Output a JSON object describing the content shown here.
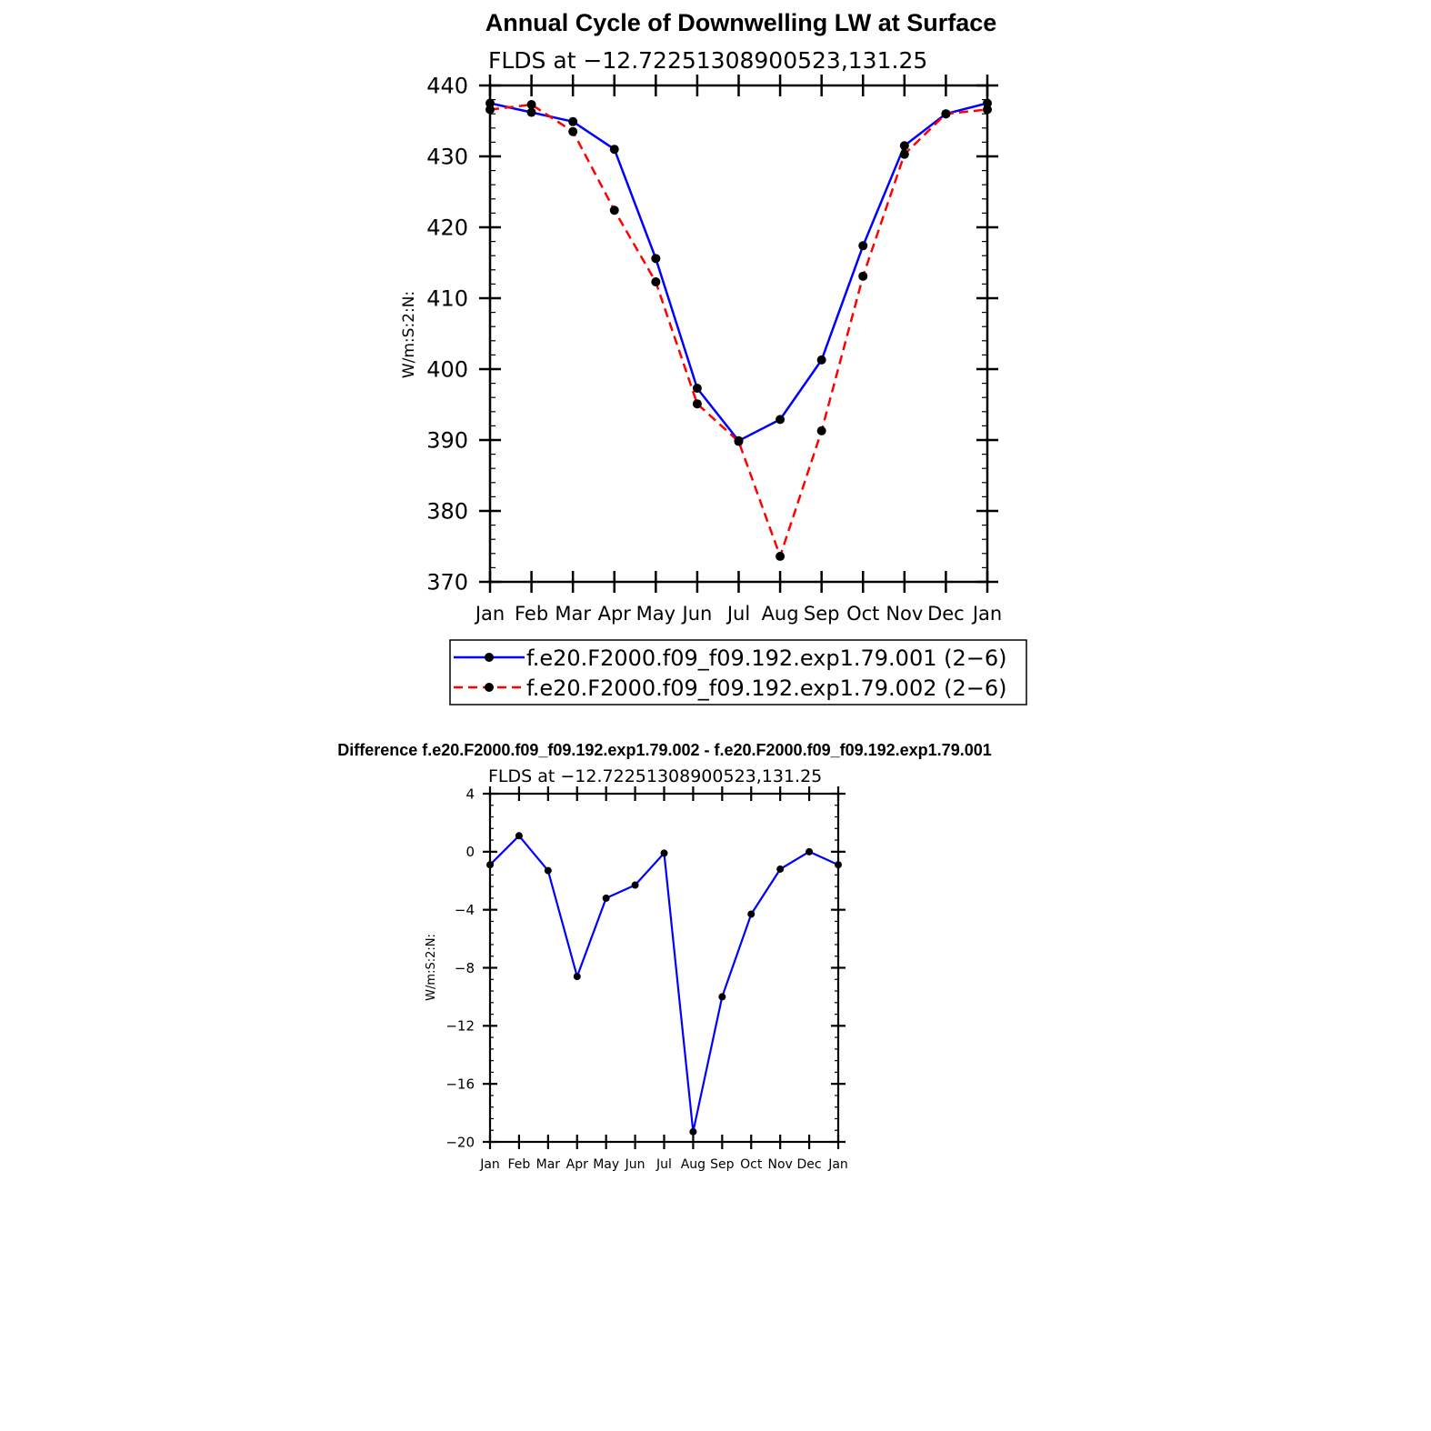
{
  "chart_data": [
    {
      "type": "line",
      "title": "Annual Cycle of Downwelling LW at Surface",
      "subtitle": "FLDS at −12.72251308900523,131.25",
      "ylabel": "W/m:S:2:N:",
      "xlabel": "",
      "categories": [
        "Jan",
        "Feb",
        "Mar",
        "Apr",
        "May",
        "Jun",
        "Jul",
        "Aug",
        "Sep",
        "Oct",
        "Nov",
        "Dec",
        "Jan"
      ],
      "ylim": [
        370,
        440
      ],
      "yticks": [
        370,
        380,
        390,
        400,
        410,
        420,
        430,
        440
      ],
      "ytick_labels": [
        "370",
        "380",
        "390",
        "400",
        "410",
        "420",
        "430",
        "440"
      ],
      "legend_position": "bottom",
      "series": [
        {
          "name": "f.e20.F2000.f09_f09.192.exp1.79.001 (2−6)",
          "color": "#0000ff",
          "dash": "solid",
          "values": [
            437.5,
            436.2,
            434.9,
            431.0,
            415.6,
            397.3,
            389.9,
            392.9,
            401.3,
            417.4,
            431.5,
            436.0,
            437.5
          ]
        },
        {
          "name": "f.e20.F2000.f09_f09.192.exp1.79.002 (2−6)",
          "color": "#ff0000",
          "dash": "dashed",
          "values": [
            436.6,
            437.3,
            433.5,
            422.4,
            412.3,
            395.1,
            389.8,
            373.6,
            391.3,
            413.1,
            430.3,
            436.0,
            436.6
          ]
        }
      ]
    },
    {
      "type": "line",
      "title": "Difference f.e20.F2000.f09_f09.192.exp1.79.002 - f.e20.F2000.f09_f09.192.exp1.79.001",
      "subtitle": "FLDS at −12.72251308900523,131.25",
      "ylabel": "W/m:S:2:N:",
      "xlabel": "",
      "categories": [
        "Jan",
        "Feb",
        "Mar",
        "Apr",
        "May",
        "Jun",
        "Jul",
        "Aug",
        "Sep",
        "Oct",
        "Nov",
        "Dec",
        "Jan"
      ],
      "ylim": [
        -20,
        4
      ],
      "yticks": [
        -20,
        -16,
        -12,
        -8,
        -4,
        0,
        4
      ],
      "ytick_labels": [
        "−20",
        "−16",
        "−12",
        "−8",
        "−4",
        "0",
        "4"
      ],
      "series": [
        {
          "name": "Difference",
          "color": "#0000ff",
          "dash": "solid",
          "values": [
            -0.9,
            1.1,
            -1.3,
            -8.6,
            -3.2,
            -2.3,
            -0.1,
            -19.3,
            -10.0,
            -4.3,
            -1.2,
            0.0,
            -0.9
          ]
        }
      ]
    }
  ]
}
